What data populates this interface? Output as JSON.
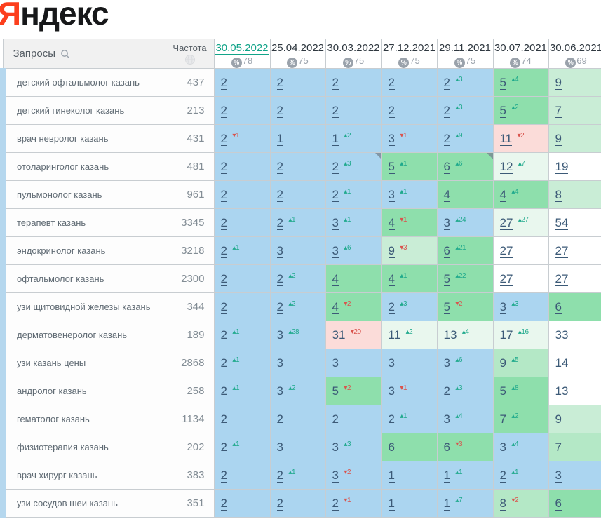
{
  "logo": {
    "first_letter": "Я",
    "rest": "ндекс"
  },
  "glyphs": {
    "up": "▴",
    "down": "▾",
    "percent": "%"
  },
  "cell_colors": {
    "b": "#abd5f0",
    "g1": "#8edfac",
    "g2": "#b4e8c6",
    "g3": "#c9edd6",
    "g4": "#e9f7ee",
    "w": "#ffffff",
    "r": "#fbdcd9"
  },
  "accent_colors": {
    "selected_date": "#12a489",
    "change_up": "#1fa98c",
    "change_down": "#d9544d",
    "logo_red": "#fc3f1d"
  },
  "header": {
    "queries_label": "Запросы",
    "frequency_label": "Частота",
    "columns": [
      {
        "date": "30.05.2022",
        "visibility": "78",
        "selected": true
      },
      {
        "date": "25.04.2022",
        "visibility": "75",
        "selected": false
      },
      {
        "date": "30.03.2022",
        "visibility": "75",
        "selected": false
      },
      {
        "date": "27.12.2021",
        "visibility": "75",
        "selected": false
      },
      {
        "date": "29.11.2021",
        "visibility": "75",
        "selected": false
      },
      {
        "date": "30.07.2021",
        "visibility": "74",
        "selected": false
      },
      {
        "date": "30.06.2021",
        "visibility": "69",
        "selected": false
      }
    ]
  },
  "rows": [
    {
      "query": "детский офтальмолог казань",
      "frequency": "437",
      "cells": [
        {
          "v": "2",
          "bg": "b"
        },
        {
          "v": "2",
          "bg": "b"
        },
        {
          "v": "2",
          "bg": "b"
        },
        {
          "v": "2",
          "bg": "b"
        },
        {
          "v": "2",
          "bg": "b",
          "chg": "3",
          "dir": "up"
        },
        {
          "v": "5",
          "bg": "g1",
          "chg": "4",
          "dir": "up"
        },
        {
          "v": "9",
          "bg": "g3"
        }
      ]
    },
    {
      "query": "детский гинеколог казань",
      "frequency": "213",
      "cells": [
        {
          "v": "2",
          "bg": "b"
        },
        {
          "v": "2",
          "bg": "b"
        },
        {
          "v": "2",
          "bg": "b"
        },
        {
          "v": "2",
          "bg": "b"
        },
        {
          "v": "2",
          "bg": "b",
          "chg": "3",
          "dir": "up"
        },
        {
          "v": "5",
          "bg": "g1",
          "chg": "2",
          "dir": "up"
        },
        {
          "v": "7",
          "bg": "g3"
        }
      ]
    },
    {
      "query": "врач невролог казань",
      "frequency": "431",
      "cells": [
        {
          "v": "2",
          "bg": "b",
          "chg": "1",
          "dir": "down"
        },
        {
          "v": "1",
          "bg": "b"
        },
        {
          "v": "1",
          "bg": "b",
          "chg": "2",
          "dir": "up"
        },
        {
          "v": "3",
          "bg": "b",
          "chg": "1",
          "dir": "down"
        },
        {
          "v": "2",
          "bg": "b",
          "chg": "9",
          "dir": "up"
        },
        {
          "v": "11",
          "bg": "r",
          "chg": "2",
          "dir": "down"
        },
        {
          "v": "9",
          "bg": "g3"
        }
      ]
    },
    {
      "query": "отоларинголог казань",
      "frequency": "481",
      "cells": [
        {
          "v": "2",
          "bg": "b"
        },
        {
          "v": "2",
          "bg": "b"
        },
        {
          "v": "2",
          "bg": "b",
          "chg": "3",
          "dir": "up",
          "note": true
        },
        {
          "v": "5",
          "bg": "g1",
          "chg": "1",
          "dir": "up"
        },
        {
          "v": "6",
          "bg": "g1",
          "chg": "6",
          "dir": "up",
          "note": true
        },
        {
          "v": "12",
          "bg": "g4",
          "chg": "7",
          "dir": "up"
        },
        {
          "v": "19",
          "bg": "w"
        }
      ]
    },
    {
      "query": "пульмонолог казань",
      "frequency": "961",
      "cells": [
        {
          "v": "2",
          "bg": "b"
        },
        {
          "v": "2",
          "bg": "b"
        },
        {
          "v": "2",
          "bg": "b",
          "chg": "1",
          "dir": "up"
        },
        {
          "v": "3",
          "bg": "b",
          "chg": "1",
          "dir": "up"
        },
        {
          "v": "4",
          "bg": "g1"
        },
        {
          "v": "4",
          "bg": "g1",
          "chg": "4",
          "dir": "up"
        },
        {
          "v": "8",
          "bg": "g3"
        }
      ]
    },
    {
      "query": "терапевт казань",
      "frequency": "3345",
      "cells": [
        {
          "v": "2",
          "bg": "b"
        },
        {
          "v": "2",
          "bg": "b",
          "chg": "1",
          "dir": "up"
        },
        {
          "v": "3",
          "bg": "b",
          "chg": "1",
          "dir": "up"
        },
        {
          "v": "4",
          "bg": "g1",
          "chg": "1",
          "dir": "down"
        },
        {
          "v": "3",
          "bg": "b",
          "chg": "24",
          "dir": "up"
        },
        {
          "v": "27",
          "bg": "g4",
          "chg": "27",
          "dir": "up"
        },
        {
          "v": "54",
          "bg": "w"
        }
      ]
    },
    {
      "query": "эндокринолог казань",
      "frequency": "3218",
      "cells": [
        {
          "v": "2",
          "bg": "b",
          "chg": "1",
          "dir": "up"
        },
        {
          "v": "3",
          "bg": "b"
        },
        {
          "v": "3",
          "bg": "b",
          "chg": "6",
          "dir": "up"
        },
        {
          "v": "9",
          "bg": "g3",
          "chg": "3",
          "dir": "down"
        },
        {
          "v": "6",
          "bg": "g1",
          "chg": "21",
          "dir": "up"
        },
        {
          "v": "27",
          "bg": "w"
        },
        {
          "v": "27",
          "bg": "w"
        }
      ]
    },
    {
      "query": "офтальмолог казань",
      "frequency": "2300",
      "cells": [
        {
          "v": "2",
          "bg": "b"
        },
        {
          "v": "2",
          "bg": "b",
          "chg": "2",
          "dir": "up"
        },
        {
          "v": "4",
          "bg": "g1"
        },
        {
          "v": "4",
          "bg": "g1",
          "chg": "1",
          "dir": "up"
        },
        {
          "v": "5",
          "bg": "g1",
          "chg": "22",
          "dir": "up"
        },
        {
          "v": "27",
          "bg": "w"
        },
        {
          "v": "27",
          "bg": "w"
        }
      ]
    },
    {
      "query": "узи щитовидной железы казань",
      "frequency": "344",
      "cells": [
        {
          "v": "2",
          "bg": "b"
        },
        {
          "v": "2",
          "bg": "b",
          "chg": "2",
          "dir": "up"
        },
        {
          "v": "4",
          "bg": "g1",
          "chg": "2",
          "dir": "down"
        },
        {
          "v": "2",
          "bg": "b",
          "chg": "3",
          "dir": "up"
        },
        {
          "v": "5",
          "bg": "g1",
          "chg": "2",
          "dir": "down"
        },
        {
          "v": "3",
          "bg": "b",
          "chg": "3",
          "dir": "up"
        },
        {
          "v": "6",
          "bg": "g1"
        }
      ]
    },
    {
      "query": "дерматовенеролог казань",
      "frequency": "189",
      "cells": [
        {
          "v": "2",
          "bg": "b",
          "chg": "1",
          "dir": "up"
        },
        {
          "v": "3",
          "bg": "b",
          "chg": "28",
          "dir": "up"
        },
        {
          "v": "31",
          "bg": "r",
          "chg": "20",
          "dir": "down"
        },
        {
          "v": "11",
          "bg": "g4",
          "chg": "2",
          "dir": "up"
        },
        {
          "v": "13",
          "bg": "g4",
          "chg": "4",
          "dir": "up"
        },
        {
          "v": "17",
          "bg": "g4",
          "chg": "16",
          "dir": "up"
        },
        {
          "v": "33",
          "bg": "w"
        }
      ]
    },
    {
      "query": "узи казань цены",
      "frequency": "2868",
      "cells": [
        {
          "v": "2",
          "bg": "b",
          "chg": "1",
          "dir": "up"
        },
        {
          "v": "3",
          "bg": "b"
        },
        {
          "v": "3",
          "bg": "b"
        },
        {
          "v": "3",
          "bg": "b"
        },
        {
          "v": "3",
          "bg": "b",
          "chg": "6",
          "dir": "up"
        },
        {
          "v": "9",
          "bg": "g2",
          "chg": "5",
          "dir": "up"
        },
        {
          "v": "14",
          "bg": "w"
        }
      ]
    },
    {
      "query": "андролог казань",
      "frequency": "258",
      "cells": [
        {
          "v": "2",
          "bg": "b",
          "chg": "1",
          "dir": "up"
        },
        {
          "v": "3",
          "bg": "b",
          "chg": "2",
          "dir": "up"
        },
        {
          "v": "5",
          "bg": "g1",
          "chg": "2",
          "dir": "down"
        },
        {
          "v": "3",
          "bg": "b",
          "chg": "1",
          "dir": "down"
        },
        {
          "v": "2",
          "bg": "b",
          "chg": "3",
          "dir": "up"
        },
        {
          "v": "5",
          "bg": "g1",
          "chg": "8",
          "dir": "up"
        },
        {
          "v": "13",
          "bg": "w"
        }
      ]
    },
    {
      "query": "гематолог казань",
      "frequency": "1134",
      "cells": [
        {
          "v": "2",
          "bg": "b"
        },
        {
          "v": "2",
          "bg": "b"
        },
        {
          "v": "2",
          "bg": "b"
        },
        {
          "v": "2",
          "bg": "b",
          "chg": "1",
          "dir": "up"
        },
        {
          "v": "3",
          "bg": "b",
          "chg": "4",
          "dir": "up"
        },
        {
          "v": "7",
          "bg": "g1",
          "chg": "2",
          "dir": "up"
        },
        {
          "v": "9",
          "bg": "g3"
        }
      ]
    },
    {
      "query": "физиотерапия казань",
      "frequency": "202",
      "cells": [
        {
          "v": "2",
          "bg": "b",
          "chg": "1",
          "dir": "up"
        },
        {
          "v": "3",
          "bg": "b"
        },
        {
          "v": "3",
          "bg": "b",
          "chg": "3",
          "dir": "up"
        },
        {
          "v": "6",
          "bg": "g1"
        },
        {
          "v": "6",
          "bg": "g1",
          "chg": "3",
          "dir": "down"
        },
        {
          "v": "3",
          "bg": "b",
          "chg": "4",
          "dir": "up"
        },
        {
          "v": "7",
          "bg": "g2"
        }
      ]
    },
    {
      "query": "врач хирург казань",
      "frequency": "383",
      "cells": [
        {
          "v": "2",
          "bg": "b"
        },
        {
          "v": "2",
          "bg": "b",
          "chg": "1",
          "dir": "up"
        },
        {
          "v": "3",
          "bg": "b",
          "chg": "2",
          "dir": "down"
        },
        {
          "v": "1",
          "bg": "b"
        },
        {
          "v": "1",
          "bg": "b",
          "chg": "1",
          "dir": "up"
        },
        {
          "v": "2",
          "bg": "b",
          "chg": "1",
          "dir": "up"
        },
        {
          "v": "3",
          "bg": "b"
        }
      ]
    },
    {
      "query": "узи сосудов шеи казань",
      "frequency": "351",
      "cells": [
        {
          "v": "2",
          "bg": "b"
        },
        {
          "v": "2",
          "bg": "b"
        },
        {
          "v": "2",
          "bg": "b",
          "chg": "1",
          "dir": "down"
        },
        {
          "v": "1",
          "bg": "b"
        },
        {
          "v": "1",
          "bg": "b",
          "chg": "7",
          "dir": "up"
        },
        {
          "v": "8",
          "bg": "g2",
          "chg": "2",
          "dir": "down"
        },
        {
          "v": "6",
          "bg": "g1"
        }
      ]
    }
  ]
}
